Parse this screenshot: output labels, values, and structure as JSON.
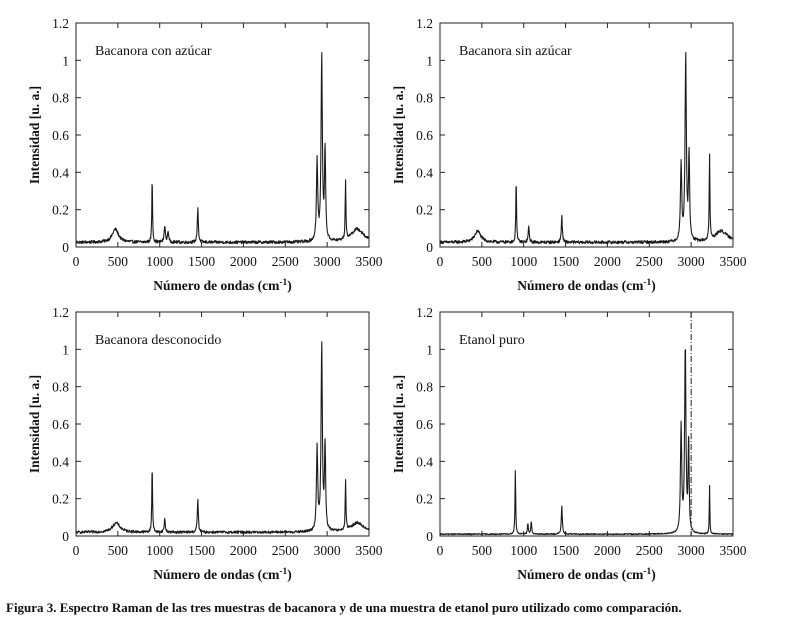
{
  "caption": "Figura 3. Espectro Raman de las tres muestras de bacanora y de una muestra de etanol puro utilizado como comparación.",
  "chart_data": [
    {
      "type": "line",
      "title": "Bacanora con azúcar",
      "xlabel": "Número de ondas (cm-1)",
      "xlabel_main": "Número de ondas (cm",
      "xlabel_sup": "-1",
      "xlabel_close": ")",
      "ylabel": "Intensidad [u. a.]",
      "xlim": [
        0,
        3500
      ],
      "ylim": [
        0,
        1.2
      ],
      "xticks": [
        0,
        500,
        1000,
        1500,
        2000,
        2500,
        3000,
        3500
      ],
      "yticks": [
        "0",
        "0.2",
        "0.4",
        "0.6",
        "0.8",
        "1",
        "1.2"
      ],
      "grid": false,
      "baseline": 0.025,
      "noise": 0.008,
      "peaks": [
        {
          "x": 470,
          "y": 0.07,
          "w": 45
        },
        {
          "x": 910,
          "y": 0.35,
          "w": 5
        },
        {
          "x": 1060,
          "y": 0.09,
          "w": 8
        },
        {
          "x": 1100,
          "y": 0.06,
          "w": 8
        },
        {
          "x": 1455,
          "y": 0.19,
          "w": 7
        },
        {
          "x": 2880,
          "y": 0.43,
          "w": 9
        },
        {
          "x": 2935,
          "y": 1.0,
          "w": 9
        },
        {
          "x": 2975,
          "y": 0.49,
          "w": 8
        },
        {
          "x": 3220,
          "y": 0.32,
          "w": 5
        },
        {
          "x": 3360,
          "y": 0.07,
          "w": 90
        }
      ]
    },
    {
      "type": "line",
      "title": "Bacanora sin azúcar",
      "xlabel": "Número de ondas (cm-1)",
      "xlabel_main": "Número de ondas (cm",
      "xlabel_sup": "-1",
      "xlabel_close": ")",
      "ylabel": "Intensidad [u. a.]",
      "xlim": [
        0,
        3500
      ],
      "ylim": [
        0,
        1.2
      ],
      "xticks": [
        0,
        500,
        1000,
        1500,
        2000,
        2500,
        3000,
        3500
      ],
      "yticks": [
        "0",
        "0.2",
        "0.4",
        "0.6",
        "0.8",
        "1",
        "1.2"
      ],
      "grid": false,
      "baseline": 0.025,
      "noise": 0.008,
      "peaks": [
        {
          "x": 450,
          "y": 0.06,
          "w": 45
        },
        {
          "x": 910,
          "y": 0.35,
          "w": 5
        },
        {
          "x": 1060,
          "y": 0.08,
          "w": 8
        },
        {
          "x": 1455,
          "y": 0.14,
          "w": 7
        },
        {
          "x": 2880,
          "y": 0.42,
          "w": 9
        },
        {
          "x": 2935,
          "y": 1.0,
          "w": 9
        },
        {
          "x": 2975,
          "y": 0.46,
          "w": 8
        },
        {
          "x": 3220,
          "y": 0.46,
          "w": 5
        },
        {
          "x": 3360,
          "y": 0.06,
          "w": 90
        }
      ]
    },
    {
      "type": "line",
      "title": "Bacanora desconocido",
      "xlabel": "Número de ondas (cm-1)",
      "xlabel_main": "Número de ondas (cm",
      "xlabel_sup": "-1",
      "xlabel_close": ")",
      "ylabel": "Intensidad [u. a.]",
      "xlim": [
        0,
        3500
      ],
      "ylim": [
        0,
        1.2
      ],
      "xticks": [
        0,
        500,
        1000,
        1500,
        2000,
        2500,
        3000,
        3500
      ],
      "yticks": [
        "0",
        "0.2",
        "0.4",
        "0.6",
        "0.8",
        "1",
        "1.2"
      ],
      "grid": false,
      "baseline": 0.02,
      "noise": 0.007,
      "peaks": [
        {
          "x": 480,
          "y": 0.05,
          "w": 55
        },
        {
          "x": 910,
          "y": 0.37,
          "w": 5
        },
        {
          "x": 1060,
          "y": 0.07,
          "w": 8
        },
        {
          "x": 1455,
          "y": 0.18,
          "w": 7
        },
        {
          "x": 2880,
          "y": 0.45,
          "w": 9
        },
        {
          "x": 2935,
          "y": 1.0,
          "w": 9
        },
        {
          "x": 2975,
          "y": 0.46,
          "w": 8
        },
        {
          "x": 3220,
          "y": 0.27,
          "w": 5
        },
        {
          "x": 3360,
          "y": 0.05,
          "w": 90
        }
      ]
    },
    {
      "type": "line",
      "title": "Etanol puro",
      "xlabel": "Número de ondas (cm-1)",
      "xlabel_main": "Número de ondas (cm",
      "xlabel_sup": "-1",
      "xlabel_close": ")",
      "ylabel": "Intensidad [u. a.]",
      "xlim": [
        0,
        3500
      ],
      "ylim": [
        0,
        1.2
      ],
      "xticks": [
        0,
        500,
        1000,
        1500,
        2000,
        2500,
        3000,
        3500
      ],
      "yticks": [
        "0",
        "0.2",
        "0.4",
        "0.6",
        "0.8",
        "1",
        "1.2"
      ],
      "grid": false,
      "baseline": 0.01,
      "noise": 0.003,
      "reference_line_x": 3000,
      "peaks": [
        {
          "x": 900,
          "y": 0.34,
          "w": 5
        },
        {
          "x": 1050,
          "y": 0.06,
          "w": 6
        },
        {
          "x": 1090,
          "y": 0.07,
          "w": 6
        },
        {
          "x": 1455,
          "y": 0.15,
          "w": 7
        },
        {
          "x": 2880,
          "y": 0.57,
          "w": 9
        },
        {
          "x": 2930,
          "y": 1.0,
          "w": 9
        },
        {
          "x": 2970,
          "y": 0.5,
          "w": 7
        },
        {
          "x": 3220,
          "y": 0.26,
          "w": 4
        }
      ]
    }
  ]
}
